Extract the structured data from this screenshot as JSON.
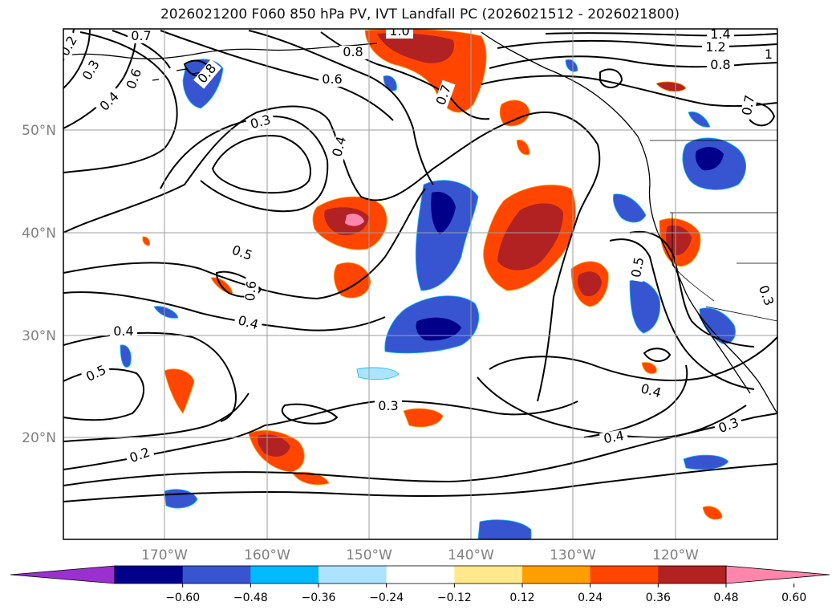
{
  "title": "2026021200 F060 850 hPa PV, IVT Landfall PC (2026021512 - 2026021800)",
  "map": {
    "lon_labels": [
      "170°W",
      "160°W",
      "150°W",
      "140°W",
      "130°W",
      "120°W"
    ],
    "lat_labels": [
      "50°N",
      "40°N",
      "30°N",
      "20°N"
    ],
    "contour_labels": [
      {
        "text": "0.2",
        "rot": -60
      },
      {
        "text": "0.3",
        "rot": -60
      },
      {
        "text": "0.4",
        "rot": -45
      },
      {
        "text": "0.6",
        "rot": -70
      },
      {
        "text": "0.7",
        "rot": 0
      },
      {
        "text": "0.8",
        "rot": -50
      },
      {
        "text": "1.0",
        "rot": 0
      },
      {
        "text": "0.8",
        "rot": 0
      },
      {
        "text": "0.6",
        "rot": 0
      },
      {
        "text": "0.3",
        "rot": -15
      },
      {
        "text": "0.4",
        "rot": -75
      },
      {
        "text": "0.7",
        "rot": -70
      },
      {
        "text": "1.4",
        "rot": 0
      },
      {
        "text": "1.2",
        "rot": 0
      },
      {
        "text": "1",
        "rot": 0
      },
      {
        "text": "0.8",
        "rot": 0
      },
      {
        "text": "0.7",
        "rot": -80
      },
      {
        "text": "0.5",
        "rot": 20
      },
      {
        "text": "0.6",
        "rot": -85
      },
      {
        "text": "0.4",
        "rot": 15
      },
      {
        "text": "0.4",
        "rot": 0
      },
      {
        "text": "0.5",
        "rot": -25
      },
      {
        "text": "0.2",
        "rot": -20
      },
      {
        "text": "0.3",
        "rot": 0
      },
      {
        "text": "0.5",
        "rot": -80
      },
      {
        "text": "0.3",
        "rot": 70
      },
      {
        "text": "0.4",
        "rot": 15
      },
      {
        "text": "0.4",
        "rot": -10
      },
      {
        "text": "0.3",
        "rot": -20
      }
    ]
  },
  "colorbar": {
    "colors": [
      "#9b30d0",
      "#00008b",
      "#3755d0",
      "#00baff",
      "#aee3ff",
      "#ffffff",
      "#ffe98c",
      "#ff9e00",
      "#ff4500",
      "#b22222",
      "#ff85ad"
    ],
    "tick_labels": [
      "−0.60",
      "−0.48",
      "−0.36",
      "−0.24",
      "−0.12",
      "0.12",
      "0.24",
      "0.36",
      "0.48",
      "0.60"
    ]
  }
}
